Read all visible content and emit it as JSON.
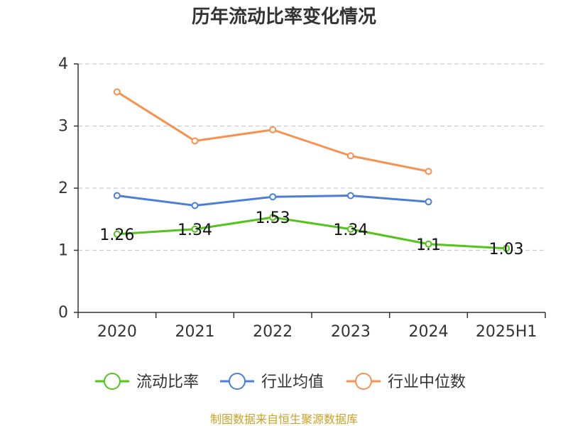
{
  "chart_data": {
    "type": "line",
    "title": "历年流动比率变化情况",
    "categories": [
      "2020",
      "2021",
      "2022",
      "2023",
      "2024",
      "2025H1"
    ],
    "ylim": [
      0,
      4
    ],
    "yticks": [
      "0",
      "1",
      "2",
      "3",
      "4"
    ],
    "grid": true,
    "legend_position": "bottom",
    "series": [
      {
        "name": "流动比率",
        "color": "#52c41a",
        "values": [
          1.26,
          1.34,
          1.53,
          1.34,
          1.1,
          1.03
        ],
        "labels": [
          "1.26",
          "1.34",
          "1.53",
          "1.34",
          "1.1",
          "1.03"
        ]
      },
      {
        "name": "行业均值",
        "color": "#4a7fd6",
        "values": [
          1.88,
          1.72,
          1.86,
          1.88,
          1.78,
          null
        ]
      },
      {
        "name": "行业中位数",
        "color": "#f79150",
        "values": [
          3.55,
          2.76,
          2.94,
          2.52,
          2.27,
          null
        ]
      }
    ]
  },
  "source_text": "制图数据来自恒生聚源数据库"
}
